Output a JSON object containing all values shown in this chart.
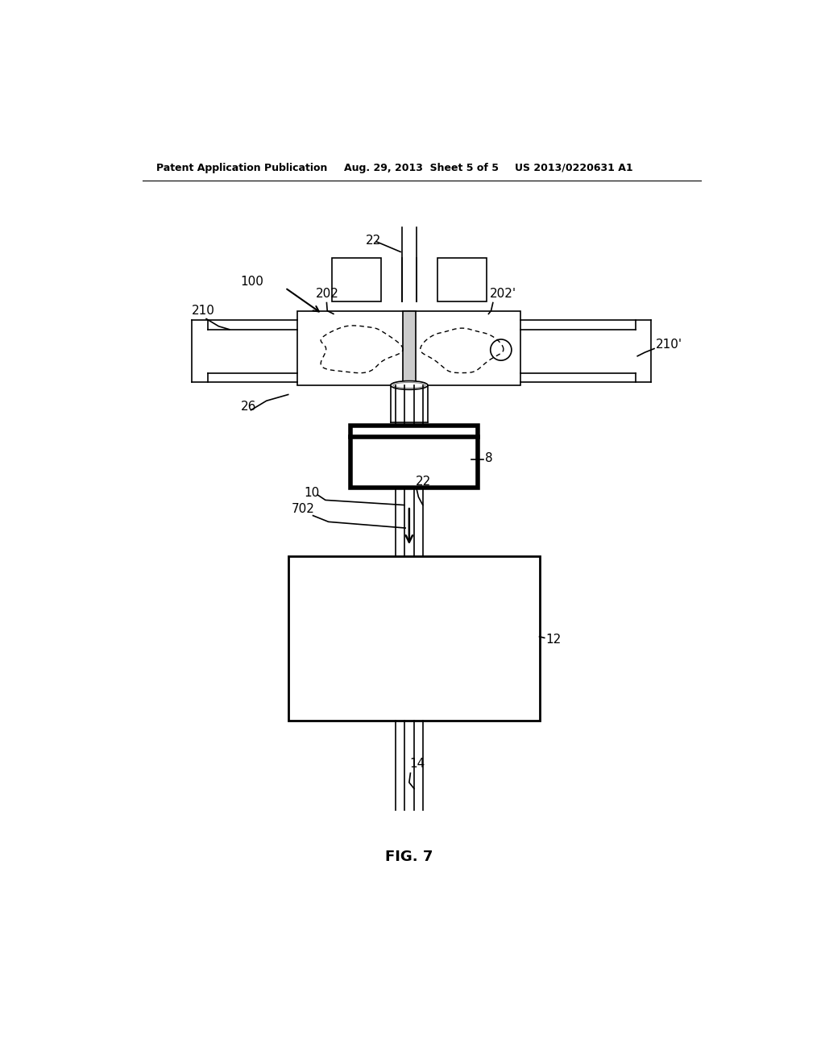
{
  "bg_color": "#ffffff",
  "header_left": "Patent Application Publication",
  "header_mid": "Aug. 29, 2013  Sheet 5 of 5",
  "header_right": "US 2013/0220631 A1",
  "fig_label": "FIG. 7",
  "label_fontsize": 11
}
